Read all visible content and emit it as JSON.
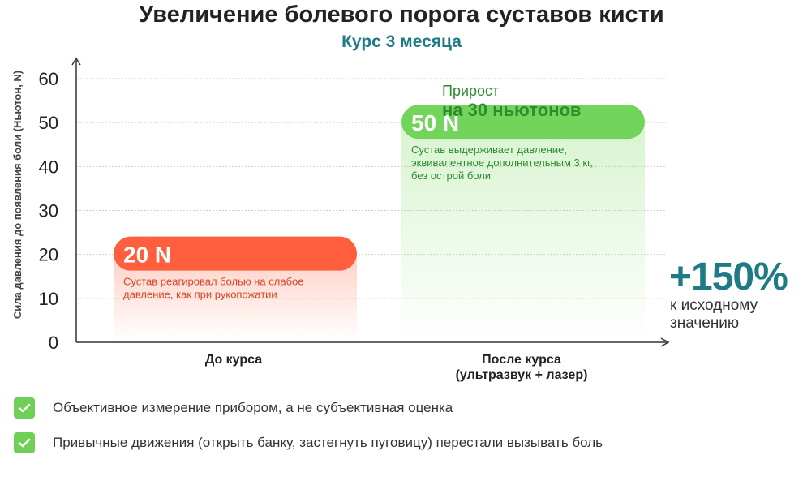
{
  "title": "Увеличение болевого порога суставов кисти",
  "subtitle": "Курс 3 месяца",
  "chart_data": {
    "type": "bar",
    "ylabel": "Сила давления до появления боли (Ньютон, N)",
    "ylim": [
      0,
      60
    ],
    "yticks": [
      0,
      10,
      20,
      30,
      40,
      50,
      60
    ],
    "grid": true,
    "categories": [
      "До курса",
      "После курса\n(ультразвук + лазер)"
    ],
    "values": [
      20,
      50
    ],
    "bar_labels": [
      "20 N",
      "50 N"
    ],
    "bar_notes": [
      "Суставреагировал болью на слабое давление, как при рукопожатии",
      "Сустав выдерживает давление, эквивалентное дополнительным 3 кг, без острой боли"
    ],
    "bar_colors": [
      "#ff5f3c",
      "#72d45a"
    ],
    "annotation_top": "Прирост",
    "annotation_main": "на 30 ньютонов",
    "side_value": "+150%",
    "side_text": "к исходному значению"
  },
  "checks": [
    "Объективное измерение прибором, а не субъективная оценка",
    "Привычные движения (открыть банку, застегнуть пуговицу) перестали вызывать боль"
  ],
  "colors": {
    "title": "#222222",
    "accent_teal": "#1e7b86",
    "green_text": "#2e8b2e",
    "red_text": "#d8452a"
  }
}
